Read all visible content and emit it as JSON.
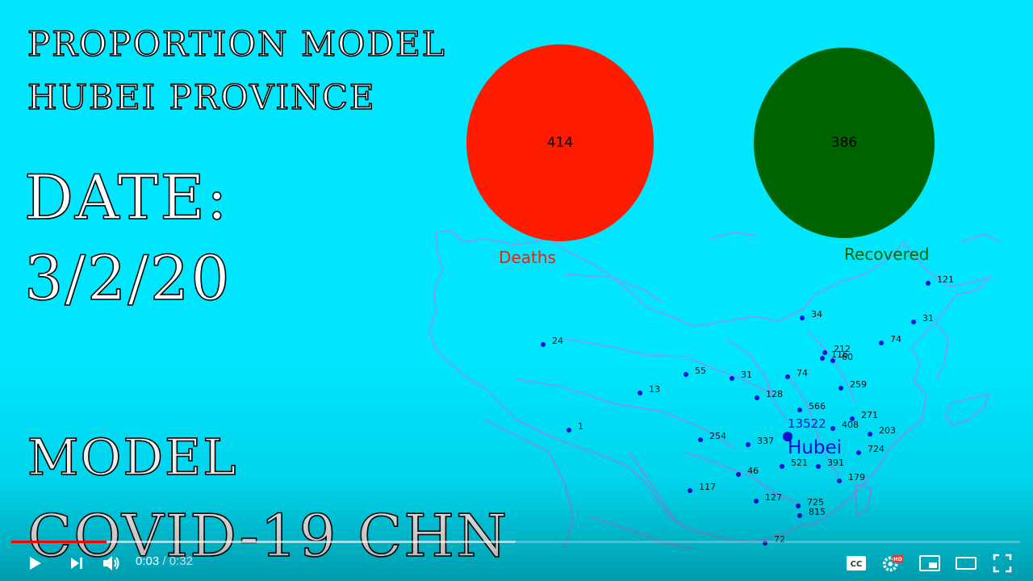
{
  "video": {
    "title_lines": [
      "PROPORTION MODEL",
      "HUBEI PROVINCE",
      "DATE:",
      "3/2/20",
      "MODEL",
      "COVID-19 CHN"
    ],
    "deaths": {
      "value": "414",
      "label": "Deaths",
      "color": "#ff1a00"
    },
    "recovered": {
      "value": "386",
      "label": "Recovered",
      "color": "#006400"
    },
    "hubei": {
      "value": "13522",
      "label": "Hubei"
    },
    "province_points": [
      {
        "label": "121"
      },
      {
        "label": "34"
      },
      {
        "label": "31"
      },
      {
        "label": "74"
      },
      {
        "label": "212"
      },
      {
        "label": "116"
      },
      {
        "label": "60"
      },
      {
        "label": "24"
      },
      {
        "label": "55"
      },
      {
        "label": "31"
      },
      {
        "label": "74"
      },
      {
        "label": "13"
      },
      {
        "label": "128"
      },
      {
        "label": "259"
      },
      {
        "label": "566"
      },
      {
        "label": "271"
      },
      {
        "label": "408"
      },
      {
        "label": "203"
      },
      {
        "label": "1"
      },
      {
        "label": "254"
      },
      {
        "label": "337"
      },
      {
        "label": "724"
      },
      {
        "label": "521"
      },
      {
        "label": "391"
      },
      {
        "label": "46"
      },
      {
        "label": "179"
      },
      {
        "label": "117"
      },
      {
        "label": "127"
      },
      {
        "label": "725"
      },
      {
        "label": "815"
      },
      {
        "label": "72"
      }
    ],
    "colors": {
      "background": "#00e6ff",
      "point": "#1010e0",
      "map_outline": "#9b8cf0"
    }
  },
  "player": {
    "current_time": "0:03",
    "duration": "0:32",
    "progress_fraction": 0.094,
    "buffered_fraction": 0.5,
    "icons": [
      "play-icon",
      "next-icon",
      "volume-icon",
      "captions-icon",
      "settings-icon",
      "miniplayer-icon",
      "theater-icon",
      "fullscreen-icon"
    ],
    "settings_badge": "HD"
  }
}
